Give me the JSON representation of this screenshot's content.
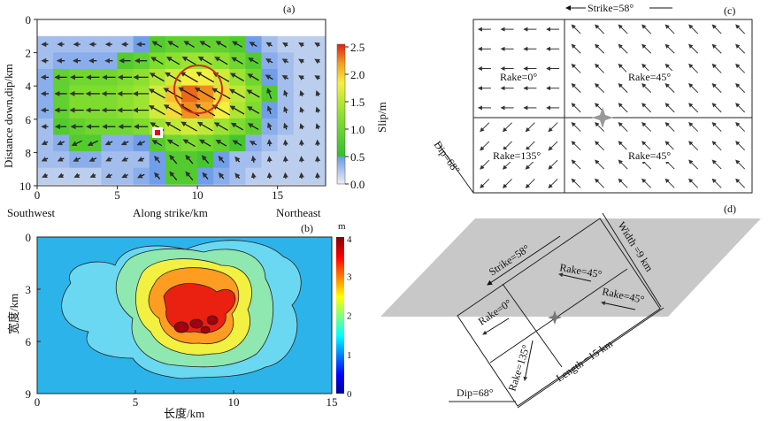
{
  "chart_data": [
    {
      "type": "heatmap",
      "panel_label": "(a)",
      "xlabel": "Along strike/km",
      "ylabel": "Distance down,dip/km",
      "x_ticks": [
        "0",
        "5",
        "10",
        "15"
      ],
      "y_ticks": [
        "0",
        "2",
        "4",
        "6",
        "8",
        "10"
      ],
      "xlim": [
        0,
        18
      ],
      "ylim": [
        10,
        0
      ],
      "left_note": "Southwest",
      "right_note": "Northeast",
      "colorbar": {
        "label": "Slip/m",
        "ticks": [
          "0.0",
          "0.5",
          "1.0",
          "1.5",
          "2.0",
          "2.5"
        ],
        "range": [
          0,
          2.5
        ]
      },
      "row_dip_start_km": 1,
      "slip_grid": [
        [
          0.3,
          0.3,
          0.3,
          0.3,
          0.3,
          0.3,
          0.5,
          0.8,
          0.9,
          0.9,
          0.9,
          0.9,
          0.8,
          0.5,
          0.3,
          0.2,
          0.2,
          0.2
        ],
        [
          0.3,
          0.4,
          0.4,
          0.4,
          0.4,
          0.8,
          0.9,
          1.1,
          1.2,
          1.3,
          1.3,
          1.2,
          1.0,
          0.8,
          0.4,
          0.3,
          0.2,
          0.2
        ],
        [
          0.4,
          0.9,
          1.0,
          1.0,
          1.0,
          1.1,
          1.2,
          1.4,
          1.6,
          1.8,
          1.8,
          1.6,
          1.3,
          1.0,
          0.5,
          0.3,
          0.2,
          0.2
        ],
        [
          0.4,
          0.9,
          1.1,
          1.1,
          1.1,
          1.2,
          1.3,
          1.6,
          2.0,
          2.3,
          2.2,
          1.9,
          1.5,
          1.2,
          0.8,
          0.3,
          0.2,
          0.2
        ],
        [
          0.4,
          0.9,
          1.1,
          1.1,
          1.1,
          1.2,
          1.3,
          1.6,
          1.9,
          2.2,
          2.1,
          1.8,
          1.4,
          1.1,
          0.5,
          0.3,
          0.2,
          0.2
        ],
        [
          0.3,
          0.8,
          0.9,
          1.0,
          1.0,
          1.0,
          1.1,
          1.3,
          1.5,
          1.6,
          1.5,
          1.3,
          1.1,
          0.9,
          0.4,
          0.3,
          0.2,
          0.2
        ],
        [
          0.3,
          0.4,
          0.8,
          0.8,
          0.4,
          0.4,
          0.5,
          0.8,
          1.0,
          1.1,
          1.0,
          0.9,
          0.7,
          0.4,
          0.3,
          0.2,
          0.2,
          0.2
        ],
        [
          0.3,
          0.3,
          0.4,
          0.4,
          0.3,
          0.3,
          0.3,
          0.5,
          0.8,
          0.8,
          0.7,
          0.5,
          0.3,
          0.3,
          0.2,
          0.2,
          0.2,
          0.2
        ],
        [
          0.2,
          0.2,
          0.2,
          0.2,
          0.3,
          0.3,
          0.4,
          0.5,
          0.8,
          0.8,
          0.5,
          0.4,
          0.3,
          0.2,
          0.2,
          0.2,
          0.2,
          0.2
        ]
      ],
      "hypocenter": {
        "x_km": 7.5,
        "dip_km": 6.7
      },
      "asperity_circle": {
        "x_km": 10,
        "dip_km": 4.2,
        "radius_km": 1.5
      }
    },
    {
      "type": "heatmap",
      "panel_label": "(b)",
      "xlabel": "长度/km",
      "ylabel": "宽度/km",
      "x_ticks": [
        "0",
        "5",
        "10",
        "15"
      ],
      "y_ticks": [
        "0",
        "3",
        "6",
        "9"
      ],
      "xlim": [
        0,
        15
      ],
      "ylim": [
        9,
        0
      ],
      "colorbar": {
        "label": "m",
        "ticks": [
          "0",
          "1",
          "2",
          "3",
          "4"
        ],
        "range": [
          0,
          4
        ]
      },
      "contour_levels": [
        1.5,
        2.0,
        2.5,
        3.0,
        3.5,
        4.0
      ],
      "peak": {
        "x_km": 7.5,
        "y_km": 4.8,
        "value": 4
      }
    }
  ],
  "panel_c": {
    "label": "(c)",
    "strike": "Strike=58°",
    "dip": "Dip=68°",
    "rakes": [
      "Rake=0°",
      "Rake=45°",
      "Rake=135°",
      "Rake=45°"
    ]
  },
  "panel_d": {
    "label": "(d)",
    "strike": "Strike=58°",
    "width": "Width =9 km",
    "length": "Length =15 km",
    "dip": "Dip=68°",
    "rakes": [
      "Rake=45°",
      "Rake=45°",
      "Rake=0°",
      "Rake=135°"
    ]
  }
}
